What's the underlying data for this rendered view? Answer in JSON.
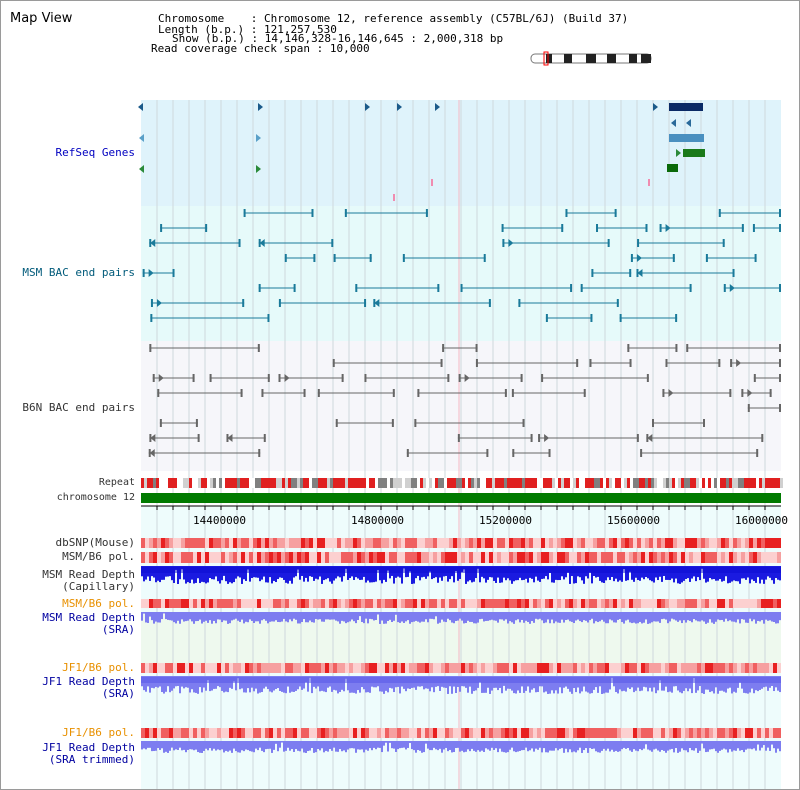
{
  "page": {
    "title": "Map View"
  },
  "header": {
    "chromosome_label": "Chromosome",
    "chromosome_value": "Chromosome 12, reference assembly (C57BL/6J) (Build 37)",
    "length_label": "Length (b.p.)",
    "length_value": "121,257,530",
    "show_label": "Show (b.p.)",
    "show_value": "14,146,328-16,146,645 : 2,000,318 bp",
    "coverage_label": "Read coverage check span",
    "coverage_value": "10,000"
  },
  "tracks": {
    "refseq": "RefSeq Genes",
    "msm_bac": "MSM BAC end pairs",
    "b6n_bac": "B6N BAC end pairs",
    "repeat": "Repeat",
    "chromosome": "chromosome 12",
    "dbsnp": "dbSNP(Mouse)",
    "msm_b6_pol_1": "MSM/B6 pol.",
    "msm_depth_cap_1": "MSM Read Depth",
    "msm_depth_cap_2": "(Capillary)",
    "msm_b6_pol_2": "MSM/B6 pol.",
    "msm_depth_sra_1": "MSM Read Depth",
    "msm_depth_sra_2": "(SRA)",
    "jf1_b6_pol_1": "JF1/B6 pol.",
    "jf1_depth_sra_1": "JF1 Read Depth",
    "jf1_depth_sra_2": "(SRA)",
    "jf1_b6_pol_2": "JF1/B6 pol.",
    "jf1_depth_trim_1": "JF1 Read Depth",
    "jf1_depth_trim_2": "(SRA trimmed)"
  },
  "axis": {
    "range": [
      14146328,
      16146645
    ],
    "ticks": [
      "14400000",
      "14800000",
      "15200000",
      "15600000",
      "16000000"
    ]
  },
  "colors": {
    "refseq_bg": "#dff3fb",
    "msm_bg": "#e6fafa",
    "b6n_bg": "#f6f6fa",
    "chromosome": "#007a00",
    "snp": "#ee4040",
    "depth_dark": "#1a1ae0",
    "depth_light": "#7d7df0"
  }
}
